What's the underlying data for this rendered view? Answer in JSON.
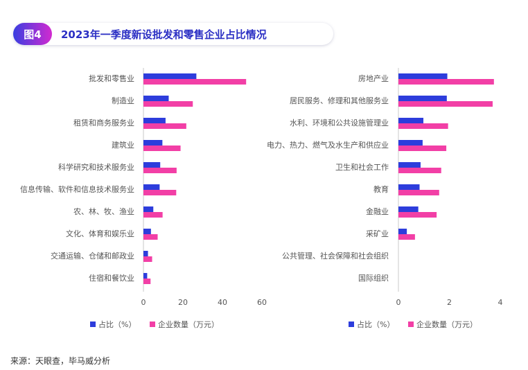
{
  "header": {
    "figure_label": "图4",
    "title": "2023年一季度新设批发和零售企业占比情况"
  },
  "source": "来源：天眼查，毕马威分析",
  "colors": {
    "share": "#2d3ddc",
    "count": "#f23fa6",
    "axis": "#c8c8c8",
    "text": "#555555"
  },
  "chart_data": [
    {
      "type": "bar",
      "orientation": "horizontal",
      "categories": [
        "批发和零售业",
        "制造业",
        "租赁和商务服务业",
        "建筑业",
        "科学研究和技术服务业",
        "信息传输、软件和信息技术服务业",
        "农、林、牧、渔业",
        "文化、体育和娱乐业",
        "交通运输、仓储和邮政业",
        "住宿和餐饮业"
      ],
      "series": [
        {
          "name": "占比（%）",
          "values": [
            26.8,
            12.8,
            11.2,
            9.6,
            8.5,
            8.2,
            5.0,
            3.8,
            2.3,
            1.9
          ]
        },
        {
          "name": "企业数量（万元）",
          "values": [
            52.0,
            25.0,
            21.7,
            18.8,
            16.8,
            16.6,
            9.7,
            7.2,
            4.4,
            3.6
          ]
        }
      ],
      "xlim": [
        0,
        60
      ],
      "xticks": [
        "0",
        "20",
        "40",
        "60"
      ],
      "legend": "bottom"
    },
    {
      "type": "bar",
      "orientation": "horizontal",
      "categories": [
        "房地产业",
        "居民服务、修理和其他服务业",
        "水利、环境和公共设施管理业",
        "电力、热力、燃气及水生产和供应业",
        "卫生和社会工作",
        "教育",
        "金融业",
        "采矿业",
        "公共管理、社会保障和社会组织",
        "国际组织"
      ],
      "series": [
        {
          "name": "占比（%）",
          "values": [
            1.92,
            1.9,
            0.98,
            0.95,
            0.87,
            0.83,
            0.78,
            0.33,
            0,
            0
          ]
        },
        {
          "name": "企业数量（万元）",
          "values": [
            3.75,
            3.7,
            1.95,
            1.88,
            1.68,
            1.6,
            1.5,
            0.65,
            0,
            0
          ]
        }
      ],
      "xlim": [
        0,
        4
      ],
      "xticks": [
        "0",
        "2",
        "4"
      ],
      "legend": "bottom"
    }
  ]
}
